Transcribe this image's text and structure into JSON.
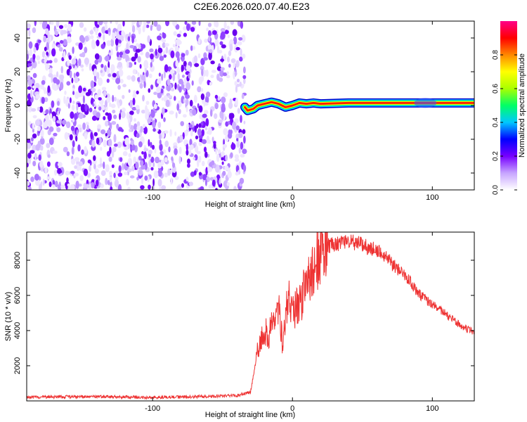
{
  "title": "C2E6.2026.020.07.40.E23",
  "chart_data": [
    {
      "type": "heatmap",
      "xlabel": "Height of straight line (km)",
      "ylabel": "Frequency (Hz)",
      "xlim": [
        -190,
        130
      ],
      "ylim": [
        -50,
        50
      ],
      "x_ticks": [
        -100,
        0,
        100
      ],
      "y_ticks": [
        -40,
        -20,
        0,
        20,
        40
      ],
      "colorbar": {
        "label": "Normalized spectral amplitude",
        "range": [
          0,
          1
        ],
        "ticks": [
          "0.0",
          "0.2",
          "0.4",
          "0.6",
          "0.8"
        ],
        "tick_values": [
          0,
          0.2,
          0.4,
          0.6,
          0.8
        ],
        "colors": [
          "#ffffff",
          "#c7a4ff",
          "#7700ff",
          "#0000ff",
          "#00c8ff",
          "#00ff66",
          "#aaff00",
          "#ffff00",
          "#ff8800",
          "#ff0000",
          "#ff0088"
        ]
      },
      "noise_region_x": [
        -190,
        -34
      ],
      "signal_band_center_hz": [
        {
          "x": -34,
          "y": -1
        },
        {
          "x": -32,
          "y": -3
        },
        {
          "x": -28,
          "y": -2
        },
        {
          "x": -25,
          "y": 0
        },
        {
          "x": -20,
          "y": 1
        },
        {
          "x": -15,
          "y": 2
        },
        {
          "x": -10,
          "y": 1
        },
        {
          "x": -5,
          "y": -1
        },
        {
          "x": 0,
          "y": 0
        },
        {
          "x": 5,
          "y": 1.5
        },
        {
          "x": 10,
          "y": 1
        },
        {
          "x": 15,
          "y": 1.5
        },
        {
          "x": 20,
          "y": 1
        },
        {
          "x": 40,
          "y": 1.5
        },
        {
          "x": 60,
          "y": 1.5
        },
        {
          "x": 80,
          "y": 1.5
        },
        {
          "x": 100,
          "y": 1.5
        },
        {
          "x": 130,
          "y": 1.5
        }
      ]
    },
    {
      "type": "line",
      "xlabel": "Height of straight line (km)",
      "ylabel": "SNR (10 * v/v)",
      "xlim": [
        -190,
        130
      ],
      "ylim": [
        0,
        9600
      ],
      "x_ticks": [
        -100,
        0,
        100
      ],
      "y_ticks": [
        2000,
        4000,
        6000,
        8000
      ],
      "color": "#ee3333",
      "x": [
        -190,
        -150,
        -100,
        -60,
        -40,
        -30,
        -25,
        -22,
        -20,
        -17,
        -14,
        -10,
        -7,
        -5,
        -3,
        0,
        5,
        10,
        15,
        20,
        25,
        30,
        35,
        40,
        45,
        50,
        55,
        60,
        65,
        70,
        75,
        80,
        85,
        90,
        95,
        100,
        105,
        110,
        115,
        120,
        125,
        130
      ],
      "values": [
        200,
        250,
        200,
        250,
        300,
        500,
        2800,
        3500,
        4000,
        3600,
        4500,
        5300,
        3200,
        4800,
        5800,
        5000,
        5500,
        6600,
        7500,
        8400,
        8800,
        8900,
        9000,
        9100,
        9000,
        8900,
        8700,
        8600,
        8300,
        7900,
        7500,
        7200,
        6700,
        6100,
        5800,
        5500,
        5200,
        4900,
        4600,
        4300,
        4100,
        3900
      ]
    }
  ]
}
